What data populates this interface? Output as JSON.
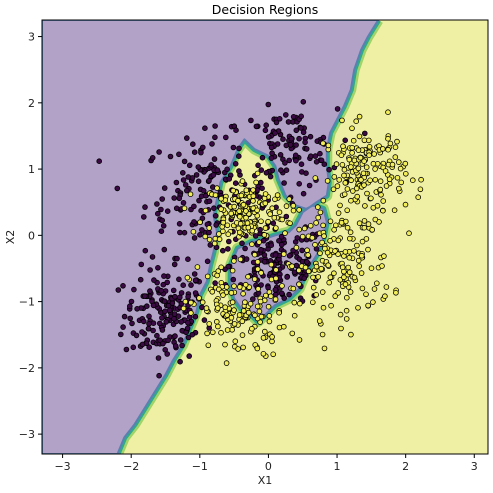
{
  "chart_data": {
    "type": "scatter",
    "title": "Decision Regions",
    "xlabel": "X1",
    "ylabel": "X2",
    "xlim": [
      -3.3,
      3.2
    ],
    "ylim": [
      -3.3,
      3.25
    ],
    "xticks": [
      "−3",
      "−2",
      "−1",
      "0",
      "1",
      "2",
      "3"
    ],
    "yticks": [
      "−3",
      "−2",
      "−1",
      "0",
      "1",
      "2",
      "3"
    ],
    "grid": false,
    "legend": "none",
    "colors": {
      "class_0_region": "#b2a2c8",
      "class_1_region": "#f0f0a4",
      "class_0_point": "#3b0a44",
      "class_1_point": "#f2ee5a",
      "point_edge": "#000000",
      "boundary_mid": "#2fa88e"
    },
    "decision_boundary": [
      [
        1.6,
        3.25
      ],
      [
        1.45,
        3.0
      ],
      [
        1.35,
        2.8
      ],
      [
        1.25,
        2.5
      ],
      [
        1.2,
        2.2
      ],
      [
        1.1,
        1.95
      ],
      [
        1.0,
        1.75
      ],
      [
        0.9,
        1.55
      ],
      [
        0.85,
        1.3
      ],
      [
        0.85,
        1.05
      ],
      [
        0.88,
        0.8
      ],
      [
        0.85,
        0.6
      ],
      [
        0.7,
        0.5
      ],
      [
        0.5,
        0.35
      ],
      [
        0.4,
        0.15
      ],
      [
        0.3,
        0.05
      ],
      [
        0.1,
        0.0
      ],
      [
        -0.05,
        -0.05
      ],
      [
        -0.25,
        -0.1
      ],
      [
        -0.45,
        -0.2
      ],
      [
        -0.55,
        -0.45
      ],
      [
        -0.55,
        -0.75
      ],
      [
        -0.5,
        -0.95
      ],
      [
        -0.4,
        -1.1
      ],
      [
        -0.25,
        -1.2
      ],
      [
        -0.15,
        -1.3
      ],
      [
        -0.05,
        -1.2
      ],
      [
        0.1,
        -1.05
      ],
      [
        0.3,
        -0.95
      ],
      [
        0.45,
        -0.8
      ],
      [
        0.55,
        -0.55
      ],
      [
        0.7,
        -0.3
      ],
      [
        0.8,
        -0.05
      ],
      [
        0.85,
        0.2
      ],
      [
        0.8,
        0.4
      ],
      [
        0.65,
        0.45
      ],
      [
        0.55,
        0.4
      ],
      [
        0.4,
        0.45
      ],
      [
        0.25,
        0.6
      ],
      [
        0.15,
        0.85
      ],
      [
        0.1,
        1.05
      ],
      [
        0.0,
        1.2
      ],
      [
        -0.2,
        1.3
      ],
      [
        -0.35,
        1.45
      ],
      [
        -0.45,
        1.3
      ],
      [
        -0.55,
        1.05
      ],
      [
        -0.7,
        0.8
      ],
      [
        -0.75,
        0.55
      ],
      [
        -0.8,
        0.3
      ],
      [
        -0.75,
        0.05
      ],
      [
        -0.8,
        -0.25
      ],
      [
        -0.85,
        -0.45
      ],
      [
        -0.9,
        -0.7
      ],
      [
        -1.0,
        -0.9
      ],
      [
        -1.05,
        -1.15
      ],
      [
        -1.15,
        -1.4
      ],
      [
        -1.25,
        -1.65
      ],
      [
        -1.4,
        -1.9
      ],
      [
        -1.5,
        -2.1
      ],
      [
        -1.65,
        -2.35
      ],
      [
        -1.8,
        -2.6
      ],
      [
        -1.95,
        -2.85
      ],
      [
        -2.1,
        -3.05
      ],
      [
        -2.2,
        -3.3
      ]
    ],
    "clusters": [
      {
        "class": 0,
        "center": [
          -1.5,
          -1.2
        ],
        "spread": [
          0.3,
          0.35
        ],
        "count": 170
      },
      {
        "class": 0,
        "center": [
          -0.9,
          0.6
        ],
        "spread": [
          0.45,
          0.45
        ],
        "count": 170
      },
      {
        "class": 0,
        "center": [
          0.15,
          -0.45
        ],
        "spread": [
          0.35,
          0.3
        ],
        "count": 150
      },
      {
        "class": 0,
        "center": [
          0.3,
          1.3
        ],
        "spread": [
          0.35,
          0.3
        ],
        "count": 110
      },
      {
        "class": 1,
        "center": [
          -0.35,
          0.35
        ],
        "spread": [
          0.3,
          0.25
        ],
        "count": 160
      },
      {
        "class": 1,
        "center": [
          -0.45,
          -1.15
        ],
        "spread": [
          0.35,
          0.35
        ],
        "count": 150
      },
      {
        "class": 1,
        "center": [
          1.0,
          -0.45
        ],
        "spread": [
          0.4,
          0.4
        ],
        "count": 170
      },
      {
        "class": 1,
        "center": [
          1.4,
          0.95
        ],
        "spread": [
          0.3,
          0.35
        ],
        "count": 170
      }
    ]
  }
}
